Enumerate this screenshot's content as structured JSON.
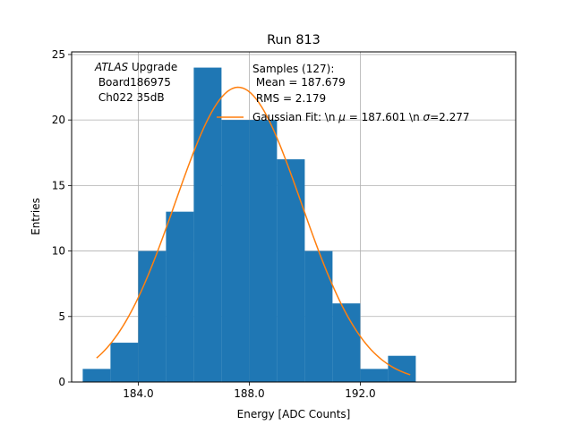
{
  "chart_data": {
    "type": "bar",
    "title": "Run 813",
    "xlabel": "Energy [ADC Counts]",
    "ylabel": "Entries",
    "xlim": [
      181.6,
      197.6
    ],
    "ylim": [
      0,
      25.2
    ],
    "grid": true,
    "xticks": [
      184.0,
      188.0,
      192.0
    ],
    "xtick_labels": [
      "184.0",
      "188.0",
      "192.0"
    ],
    "yticks": [
      0,
      5,
      10,
      15,
      20,
      25
    ],
    "ytick_labels": [
      "0",
      "5",
      "10",
      "15",
      "20",
      "25"
    ],
    "bar_color": "#1f77b4",
    "fit_color": "#ff7f0e",
    "bins": [
      {
        "x0": 182.0,
        "x1": 183.0,
        "count": 1
      },
      {
        "x0": 183.0,
        "x1": 184.0,
        "count": 3
      },
      {
        "x0": 184.0,
        "x1": 185.0,
        "count": 10
      },
      {
        "x0": 185.0,
        "x1": 186.0,
        "count": 13
      },
      {
        "x0": 186.0,
        "x1": 187.0,
        "count": 24
      },
      {
        "x0": 187.0,
        "x1": 188.0,
        "count": 20
      },
      {
        "x0": 188.0,
        "x1": 189.0,
        "count": 20
      },
      {
        "x0": 189.0,
        "x1": 190.0,
        "count": 17
      },
      {
        "x0": 190.0,
        "x1": 191.0,
        "count": 10
      },
      {
        "x0": 191.0,
        "x1": 192.0,
        "count": 6
      },
      {
        "x0": 192.0,
        "x1": 193.0,
        "count": 1
      },
      {
        "x0": 193.0,
        "x1": 194.0,
        "count": 2
      }
    ],
    "fit": {
      "mu": 187.601,
      "sigma": 2.277,
      "peak": 22.5,
      "x_range": [
        182.5,
        193.8
      ]
    },
    "annotation": {
      "atlas": "ATLAS",
      "atlas_suffix": " Upgrade",
      "line2": " Board186975",
      "line3": " Ch022 35dB"
    },
    "legend": {
      "placement": "top-right",
      "samples_line1": "Samples (127):",
      "samples_line2": " Mean = 187.679",
      "samples_line3": " RMS = 2.179",
      "fit_prefix": "Gaussian Fit: \\n ",
      "fit_mu_symbol": "μ",
      "fit_mu_text": " = 187.601 \\n ",
      "fit_sigma_symbol": "σ",
      "fit_sigma_text": "=2.277"
    }
  }
}
